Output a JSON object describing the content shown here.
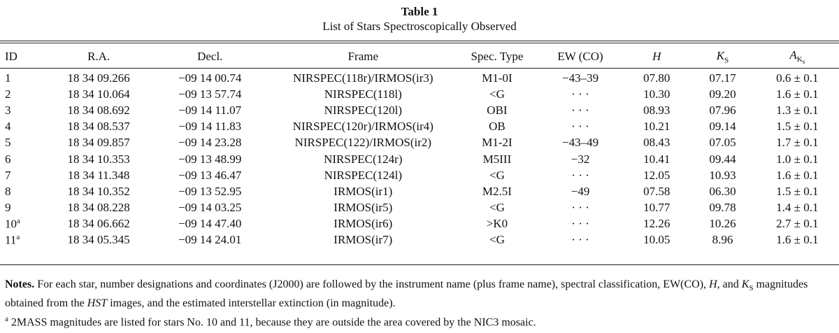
{
  "caption": {
    "label": "Table 1",
    "title": "List of Stars Spectroscopically Observed"
  },
  "columns": {
    "id": "ID",
    "ra": "R.A.",
    "decl": "Decl.",
    "frame": "Frame",
    "spec_type": "Spec. Type",
    "ew_co": "EW (CO)",
    "h": "H",
    "ks_main": "K",
    "ks_sub": "S",
    "ak_main": "A",
    "ak_sub1": "K",
    "ak_sub2": "s"
  },
  "rows": [
    {
      "id": "1",
      "id_note": "",
      "ra": "18 34 09.266",
      "decl": "−09 14 00.74",
      "frame": "NIRSPEC(118r)/IRMOS(ir3)",
      "spec": "M1-0I",
      "ew": "−43–39",
      "h": "07.80",
      "ks": "07.17",
      "ak": "0.6 ± 0.1"
    },
    {
      "id": "2",
      "id_note": "",
      "ra": "18 34 10.064",
      "decl": "−09 13 57.74",
      "frame": "NIRSPEC(118l)",
      "spec": "<G",
      "ew": "· · ·",
      "h": "10.30",
      "ks": "09.20",
      "ak": "1.6 ± 0.1"
    },
    {
      "id": "3",
      "id_note": "",
      "ra": "18 34 08.692",
      "decl": "−09 14 11.07",
      "frame": "NIRSPEC(120l)",
      "spec": "OBI",
      "ew": "· · ·",
      "h": "08.93",
      "ks": "07.96",
      "ak": "1.3 ± 0.1"
    },
    {
      "id": "4",
      "id_note": "",
      "ra": "18 34 08.537",
      "decl": "−09 14 11.83",
      "frame": "NIRSPEC(120r)/IRMOS(ir4)",
      "spec": "OB",
      "ew": "· · ·",
      "h": "10.21",
      "ks": "09.14",
      "ak": "1.5 ± 0.1"
    },
    {
      "id": "5",
      "id_note": "",
      "ra": "18 34 09.857",
      "decl": "−09 14 23.28",
      "frame": "NIRSPEC(122)/IRMOS(ir2)",
      "spec": "M1-2I",
      "ew": "−43–49",
      "h": "08.43",
      "ks": "07.05",
      "ak": "1.7 ± 0.1"
    },
    {
      "id": "6",
      "id_note": "",
      "ra": "18 34 10.353",
      "decl": "−09 13 48.99",
      "frame": "NIRSPEC(124r)",
      "spec": "M5III",
      "ew": "−32",
      "h": "10.41",
      "ks": "09.44",
      "ak": "1.0 ± 0.1"
    },
    {
      "id": "7",
      "id_note": "",
      "ra": "18 34 11.348",
      "decl": "−09 13 46.47",
      "frame": "NIRSPEC(124l)",
      "spec": "<G",
      "ew": "· · ·",
      "h": "12.05",
      "ks": "10.93",
      "ak": "1.6 ± 0.1"
    },
    {
      "id": "8",
      "id_note": "",
      "ra": "18 34 10.352",
      "decl": "−09 13 52.95",
      "frame": "IRMOS(ir1)",
      "spec": "M2.5I",
      "ew": "−49",
      "h": "07.58",
      "ks": "06.30",
      "ak": "1.5 ± 0.1"
    },
    {
      "id": "9",
      "id_note": "",
      "ra": "18 34 08.228",
      "decl": "−09 14 03.25",
      "frame": "IRMOS(ir5)",
      "spec": "<G",
      "ew": "· · ·",
      "h": "10.77",
      "ks": "09.78",
      "ak": "1.4 ± 0.1"
    },
    {
      "id": "10",
      "id_note": "a",
      "ra": "18 34 06.662",
      "decl": "−09 14 47.40",
      "frame": "IRMOS(ir6)",
      "spec": ">K0",
      "ew": "· · ·",
      "h": "12.26",
      "ks": "10.26",
      "ak": "2.7 ± 0.1"
    },
    {
      "id": "11",
      "id_note": "a",
      "ra": "18 34 05.345",
      "decl": "−09 14 24.01",
      "frame": "IRMOS(ir7)",
      "spec": "<G",
      "ew": "· · ·",
      "h": "10.05",
      "ks": "8.96",
      "ak": "1.6 ± 0.1"
    }
  ],
  "notes": {
    "label": "Notes.",
    "text_1": "For each star, number designations and coordinates (J2000) are followed by the instrument name (plus frame name), spectral classification, EW(CO), ",
    "h": "H",
    "text_2": ", and ",
    "ks_main": "K",
    "ks_sub": "S",
    "text_3": " magnitudes obtained from the ",
    "hst": "HST",
    "text_4": " images, and the estimated interstellar extinction (in magnitude).",
    "footnote_mark": "a",
    "footnote_text": " 2MASS magnitudes are listed for stars No. 10 and 11, because they are outside the area covered by the NIC3 mosaic."
  }
}
